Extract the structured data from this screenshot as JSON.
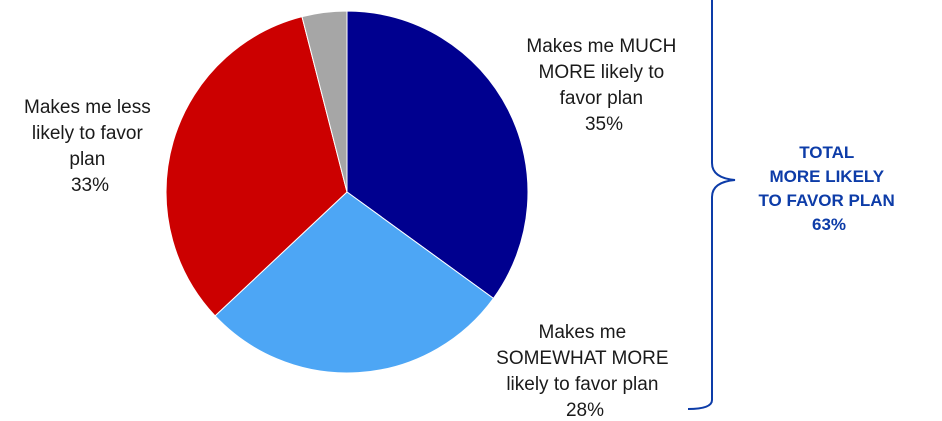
{
  "chart_data": {
    "type": "pie",
    "slices": [
      {
        "label_lines": [
          "Makes me MUCH",
          "MORE likely to",
          "favor plan",
          "35%"
        ],
        "value": 35,
        "color": "#00008f"
      },
      {
        "label_lines": [
          "Makes me",
          "SOMEWHAT MORE",
          "likely to favor plan",
          "28%"
        ],
        "value": 28,
        "color": "#4da6f5"
      },
      {
        "label_lines": [
          "Makes me less",
          "likely to favor",
          "plan",
          "33%"
        ],
        "value": 33,
        "color": "#cc0000"
      },
      {
        "label_lines": [],
        "value": 4,
        "color": "#a6a6a6"
      }
    ],
    "bracket_label_lines": [
      "TOTAL",
      "MORE LIKELY",
      "TO FAVOR PLAN",
      "63%"
    ],
    "bracket_color": "#0d3ca8",
    "legend": "none"
  }
}
